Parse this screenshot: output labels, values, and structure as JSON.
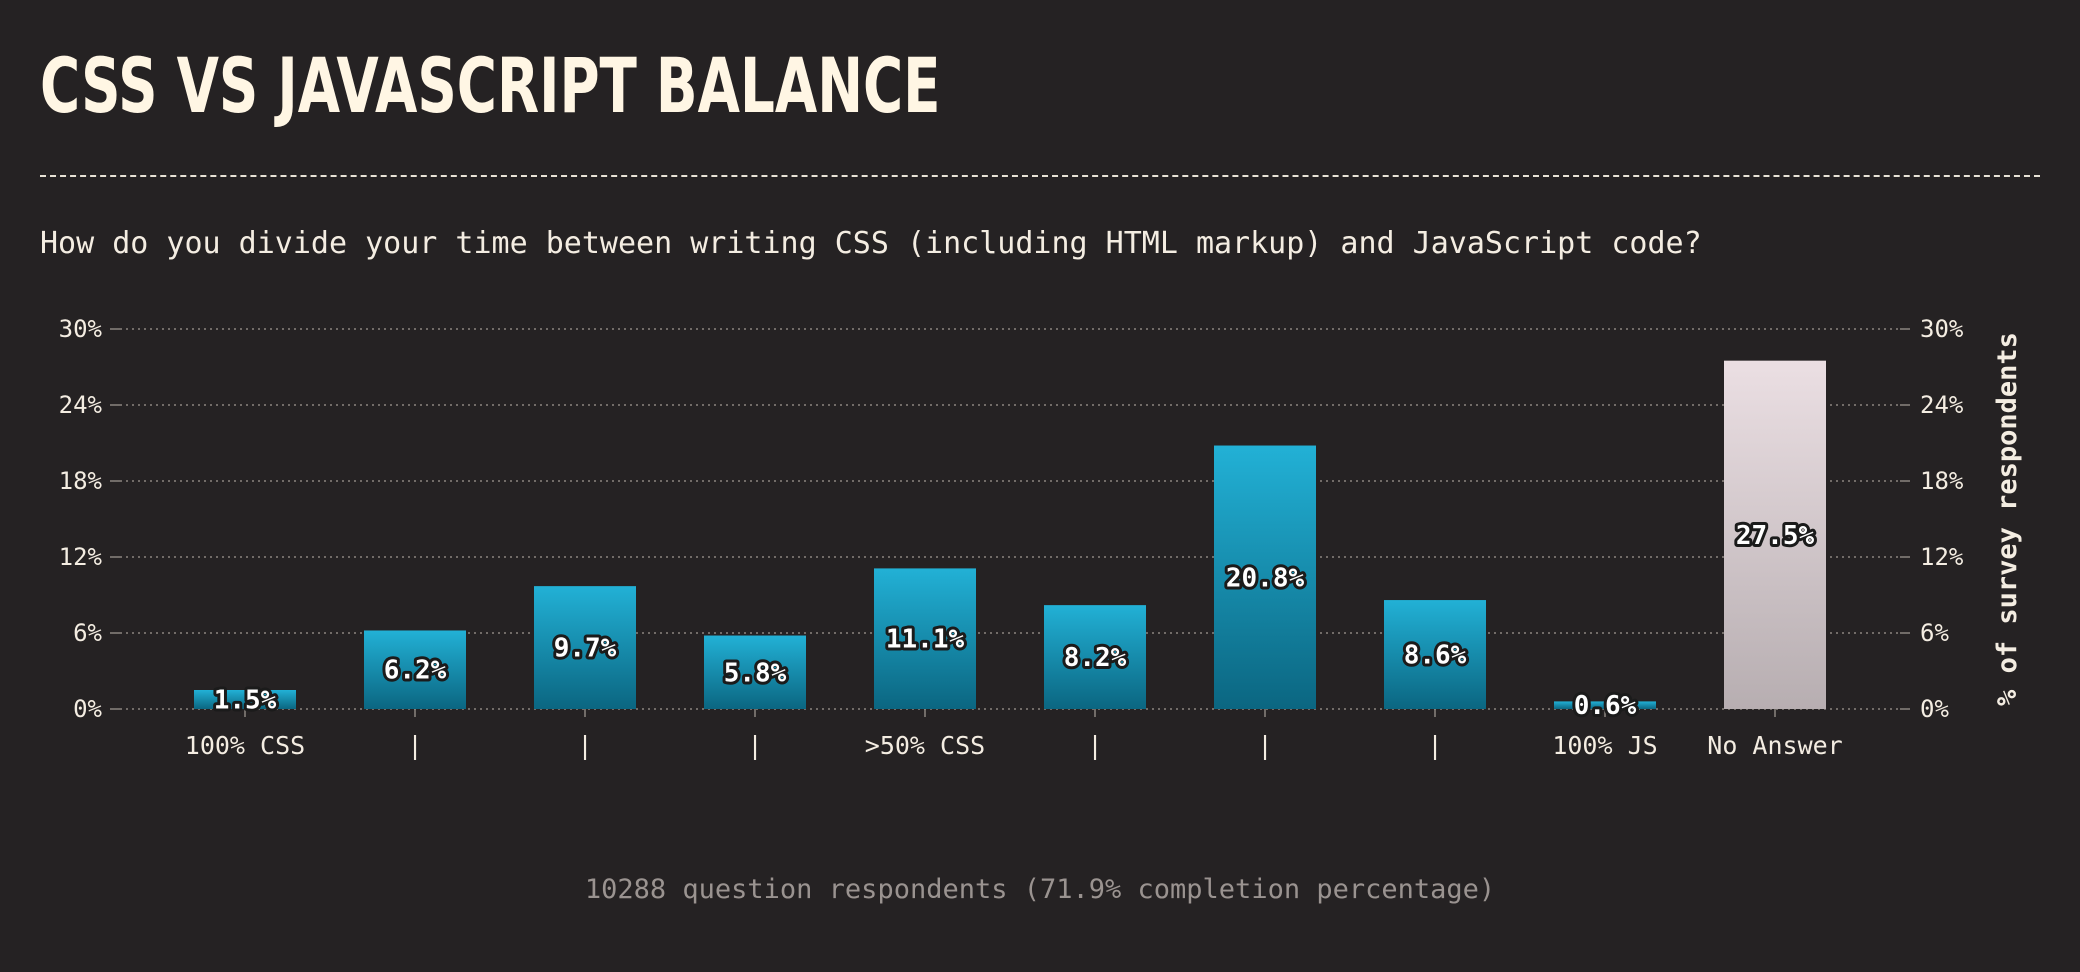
{
  "header": {
    "title": "CSS VS JAVASCRIPT BALANCE",
    "question": "How do you divide your time between writing CSS (including HTML markup) and JavaScript code?"
  },
  "footer": {
    "respondents": "10288 question respondents (71.9% completion percentage)"
  },
  "colors": {
    "background": "#252223",
    "bar_top": "#22b1d6",
    "bar_bottom": "#0b6681",
    "no_answer_top": "#ebdfe3",
    "no_answer_bottom": "#b7aeb1",
    "grid": "#8b8580"
  },
  "chart_data": {
    "type": "bar",
    "categories": [
      "100% CSS",
      "|",
      "|",
      "|",
      ">50% CSS",
      "|",
      "|",
      "|",
      "100% JS",
      "No Answer"
    ],
    "values": [
      1.5,
      6.2,
      9.7,
      5.8,
      11.1,
      8.2,
      20.8,
      8.6,
      0.6,
      27.5
    ],
    "data_labels": [
      "1.5%",
      "6.2%",
      "9.7%",
      "5.8%",
      "11.1%",
      "8.2%",
      "20.8%",
      "8.6%",
      "0.6%",
      "27.5%"
    ],
    "highlight_index": 9,
    "ylabel": "% of survey respondents",
    "ylim": [
      0,
      30
    ],
    "yticks": [
      0,
      6,
      12,
      18,
      24,
      30
    ],
    "ytick_labels": [
      "0%",
      "6%",
      "12%",
      "18%",
      "24%",
      "30%"
    ],
    "grid": true,
    "axis_position": "both-sides"
  }
}
